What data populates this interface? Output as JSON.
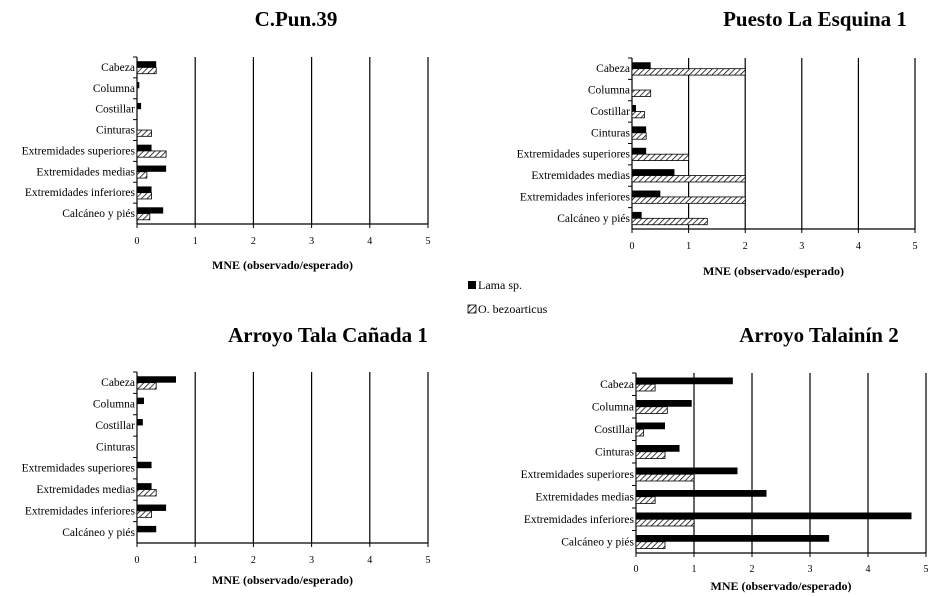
{
  "legend": {
    "series_1": "Lama sp.",
    "series_2": "O. bezoarticus"
  },
  "chart_data": [
    {
      "type": "bar",
      "orientation": "horizontal",
      "title": "C.Pun.39",
      "xlabel": "MNE (observado/esperado)",
      "xlim": [
        0,
        5
      ],
      "xticks": [
        0,
        1,
        2,
        3,
        4,
        5
      ],
      "categories": [
        "Cabeza",
        "Columna",
        "Costillar",
        "Cinturas",
        "Extremidades superiores",
        "Extremidades medias",
        "Extremidades inferiores",
        "Calcáneo y piés"
      ],
      "series": [
        {
          "name": "Lama sp.",
          "values": [
            0.33,
            0.04,
            0.07,
            0,
            0.25,
            0.5,
            0.25,
            0.45
          ]
        },
        {
          "name": "O. bezoarticus",
          "values": [
            0.33,
            0,
            0,
            0.25,
            0.5,
            0.17,
            0.25,
            0.22
          ]
        }
      ]
    },
    {
      "type": "bar",
      "orientation": "horizontal",
      "title": "Puesto La Esquina 1",
      "xlabel": "MNE (observado/esperado)",
      "xlim": [
        0,
        5
      ],
      "xticks": [
        0,
        1,
        2,
        3,
        4,
        5
      ],
      "categories": [
        "Cabeza",
        "Columna",
        "Costillar",
        "Cinturas",
        "Extremidades superiores",
        "Extremidades medias",
        "Extremidades inferiores",
        "Calcáneo y piés"
      ],
      "series": [
        {
          "name": "Lama sp.",
          "values": [
            0.33,
            0,
            0.07,
            0.25,
            0.25,
            0.75,
            0.5,
            0.17
          ]
        },
        {
          "name": "O. bezoarticus",
          "values": [
            2,
            0.33,
            0.22,
            0.25,
            1,
            2,
            2,
            1.33
          ]
        }
      ]
    },
    {
      "type": "bar",
      "orientation": "horizontal",
      "title": "Arroyo Tala Cañada 1",
      "xlabel": "MNE (observado/esperado)",
      "xlim": [
        0,
        5
      ],
      "xticks": [
        0,
        1,
        2,
        3,
        4,
        5
      ],
      "categories": [
        "Cabeza",
        "Columna",
        "Costillar",
        "Cinturas",
        "Extremidades superiores",
        "Extremidades medias",
        "Extremidades inferiores",
        "Calcáneo y piés"
      ],
      "series": [
        {
          "name": "Lama sp.",
          "values": [
            0.67,
            0.12,
            0.1,
            0,
            0.25,
            0.25,
            0.5,
            0.33
          ]
        },
        {
          "name": "O. bezoarticus",
          "values": [
            0.33,
            0,
            0,
            0,
            0,
            0.33,
            0.25,
            0
          ]
        }
      ]
    },
    {
      "type": "bar",
      "orientation": "horizontal",
      "title": "Arroyo Talainín 2",
      "xlabel": "MNE (observado/esperado)",
      "xlim": [
        0,
        5
      ],
      "xticks": [
        0,
        1,
        2,
        3,
        4,
        5
      ],
      "categories": [
        "Cabeza",
        "Columna",
        "Costillar",
        "Cinturas",
        "Extremidades superiores",
        "Extremidades medias",
        "Extremidades inferiores",
        "Calcáneo y piés"
      ],
      "series": [
        {
          "name": "Lama sp.",
          "values": [
            1.67,
            0.96,
            0.5,
            0.75,
            1.75,
            2.25,
            4.75,
            3.33
          ]
        },
        {
          "name": "O. bezoarticus",
          "values": [
            0.33,
            0.54,
            0.13,
            0.5,
            1,
            0.33,
            1,
            0.5
          ]
        }
      ]
    }
  ]
}
